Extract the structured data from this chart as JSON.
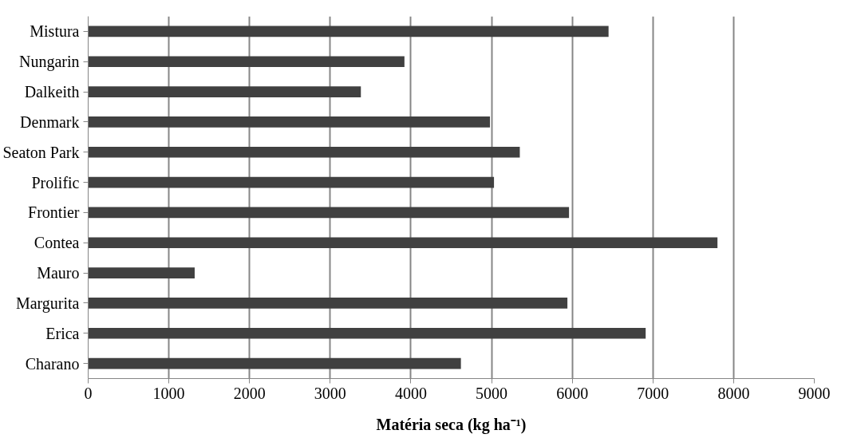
{
  "chart_data": {
    "type": "bar",
    "orientation": "horizontal",
    "xlabel": "Matéria seca (kg ha⁻¹)",
    "categories": [
      "Mistura",
      "Nungarin",
      "Dalkeith",
      "Denmark",
      "Seaton Park",
      "Prolific",
      "Frontier",
      "Contea",
      "Mauro",
      "Margurita",
      "Erica",
      "Charano"
    ],
    "values": [
      6450,
      3920,
      3380,
      4980,
      5350,
      5030,
      5960,
      7800,
      1320,
      5940,
      6910,
      4620
    ],
    "color": "#404040",
    "xlim": [
      0,
      9000
    ],
    "xticks": [
      0,
      1000,
      2000,
      3000,
      4000,
      5000,
      6000,
      7000,
      8000,
      9000
    ],
    "grid": "x"
  }
}
